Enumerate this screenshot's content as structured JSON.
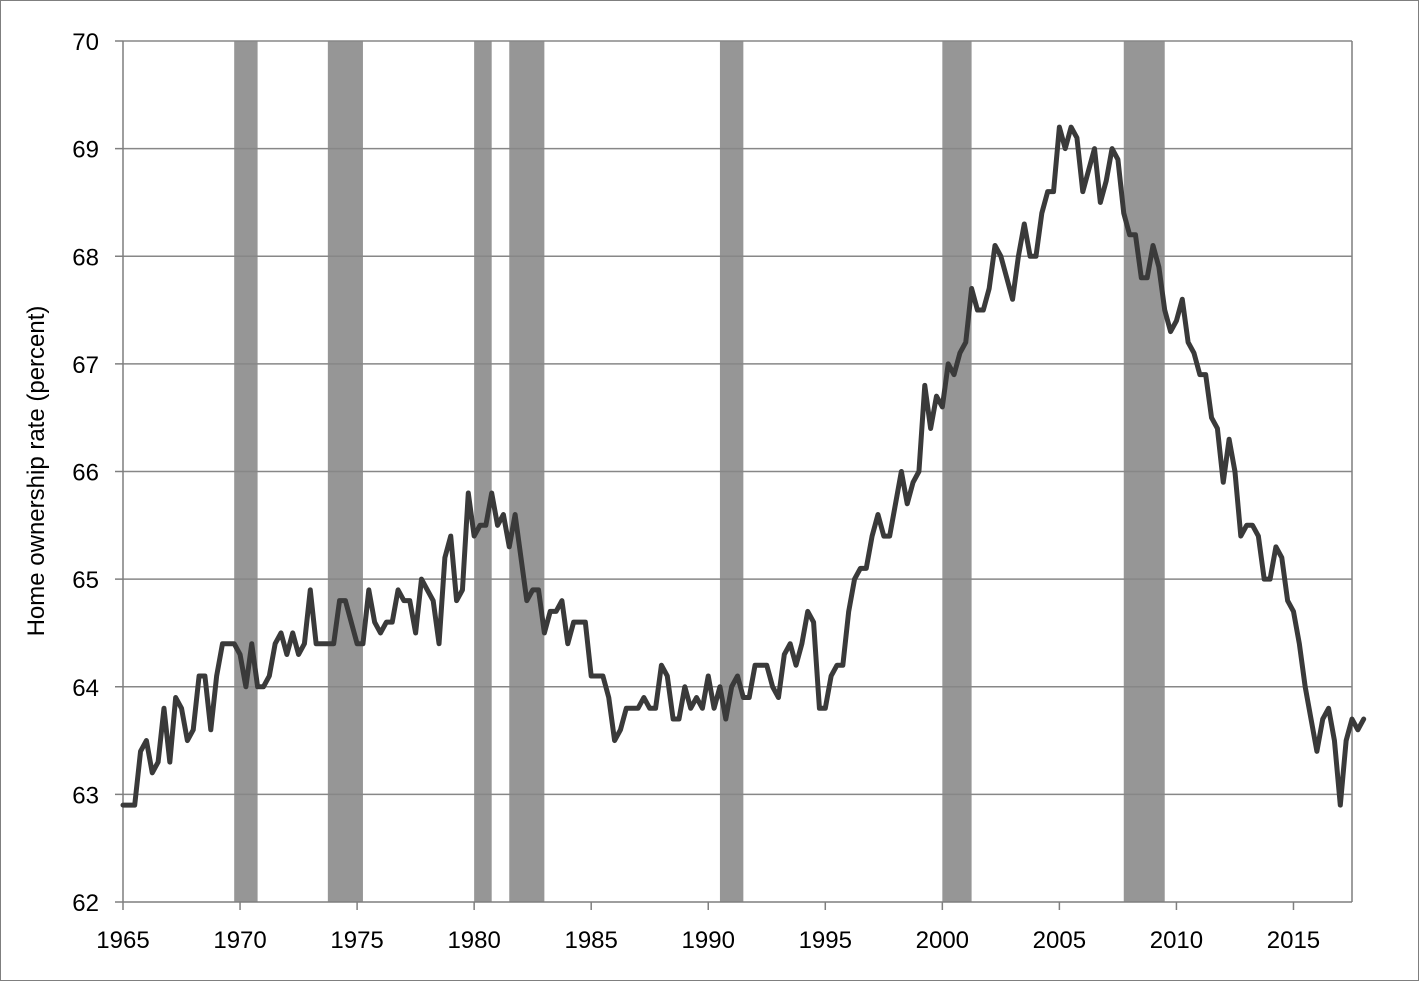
{
  "chart_data": {
    "type": "line",
    "title": "",
    "xlabel": "",
    "ylabel": "Home ownership rate (percent)",
    "xlim": [
      1965,
      2017.5
    ],
    "ylim": [
      62,
      70
    ],
    "x_ticks": [
      "1965",
      "1970",
      "1975",
      "1980",
      "1985",
      "1990",
      "1995",
      "2000",
      "2005",
      "2010",
      "2015"
    ],
    "y_ticks": [
      "62",
      "63",
      "64",
      "65",
      "66",
      "67",
      "68",
      "69",
      "70"
    ],
    "grid": "horizontal",
    "legend": "none",
    "colors": {
      "line": "#3a3a3a",
      "shade": "#969696",
      "grid": "#878787",
      "axis": "#7f7f7f"
    },
    "shaded_periods": [
      [
        1969.75,
        1970.75
      ],
      [
        1973.75,
        1975.25
      ],
      [
        1980.0,
        1980.75
      ],
      [
        1981.5,
        1983.0
      ],
      [
        1990.5,
        1991.5
      ],
      [
        2000.0,
        2001.25
      ],
      [
        2007.75,
        2009.5
      ]
    ],
    "series": [
      {
        "start": 1965.0,
        "step": 0.25,
        "values": [
          62.9,
          62.9,
          62.9,
          63.4,
          63.5,
          63.2,
          63.3,
          63.8,
          63.3,
          63.9,
          63.8,
          63.5,
          63.6,
          64.1,
          64.1,
          63.6,
          64.1,
          64.4,
          64.4,
          64.4,
          64.3,
          64.0,
          64.4,
          64.0,
          64.0,
          64.1,
          64.4,
          64.5,
          64.3,
          64.5,
          64.3,
          64.4,
          64.9,
          64.4,
          64.4,
          64.4,
          64.4,
          64.8,
          64.8,
          64.6,
          64.4,
          64.4,
          64.9,
          64.6,
          64.5,
          64.6,
          64.6,
          64.9,
          64.8,
          64.8,
          64.5,
          65.0,
          64.9,
          64.8,
          64.4,
          65.2,
          65.4,
          64.8,
          64.9,
          65.8,
          65.4,
          65.5,
          65.5,
          65.8,
          65.5,
          65.6,
          65.3,
          65.6,
          65.2,
          64.8,
          64.9,
          64.9,
          64.5,
          64.7,
          64.7,
          64.8,
          64.4,
          64.6,
          64.6,
          64.6,
          64.1,
          64.1,
          64.1,
          63.9,
          63.5,
          63.6,
          63.8,
          63.8,
          63.8,
          63.9,
          63.8,
          63.8,
          64.2,
          64.1,
          63.7,
          63.7,
          64.0,
          63.8,
          63.9,
          63.8,
          64.1,
          63.8,
          64.0,
          63.7,
          64.0,
          64.1,
          63.9,
          63.9,
          64.2,
          64.2,
          64.2,
          64.0,
          63.9,
          64.3,
          64.4,
          64.2,
          64.4,
          64.7,
          64.6,
          63.8,
          63.8,
          64.1,
          64.2,
          64.2,
          64.7,
          65.0,
          65.1,
          65.1,
          65.4,
          65.6,
          65.4,
          65.4,
          65.7,
          66.0,
          65.7,
          65.9,
          66.0,
          66.8,
          66.4,
          66.7,
          66.6,
          67.0,
          66.9,
          67.1,
          67.2,
          67.7,
          67.5,
          67.5,
          67.7,
          68.1,
          68.0,
          67.8,
          67.6,
          68.0,
          68.3,
          68.0,
          68.0,
          68.4,
          68.6,
          68.6,
          69.2,
          69.0,
          69.2,
          69.1,
          68.6,
          68.8,
          69.0,
          68.5,
          68.7,
          69.0,
          68.9,
          68.4,
          68.2,
          68.2,
          67.8,
          67.8,
          68.1,
          67.9,
          67.5,
          67.3,
          67.4,
          67.6,
          67.2,
          67.1,
          66.9,
          66.9,
          66.5,
          66.4,
          65.9,
          66.3,
          66.0,
          65.4,
          65.5,
          65.5,
          65.4,
          65.0,
          65.0,
          65.3,
          65.2,
          64.8,
          64.7,
          64.4,
          64.0,
          63.7,
          63.4,
          63.7,
          63.8,
          63.5,
          62.9,
          63.5,
          63.7,
          63.6,
          63.7
        ]
      }
    ]
  }
}
